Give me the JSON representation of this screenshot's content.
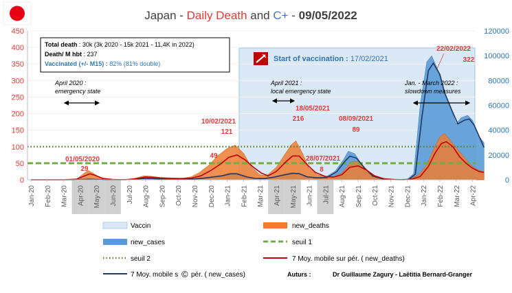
{
  "chart_data": {
    "type": "area",
    "title": {
      "country": "Japan",
      "sep1": " - ",
      "deaths": "Daily Death",
      "and": " and ",
      "cases": "C+",
      "sep2": " - ",
      "date": "09/05/2022"
    },
    "x_ticks": [
      "Jan-20",
      "Feb-20",
      "Mar-20",
      "Apr-20",
      "May-20",
      "Jun-20",
      "Jul-20",
      "Aug-20",
      "Sep-20",
      "Oct-20",
      "Nov-20",
      "Dec-20",
      "Jan-21",
      "Feb-21",
      "Mar-21",
      "Apr-21",
      "May-21",
      "Jun-21",
      "Jul-21",
      "Aug-21",
      "Sep-21",
      "Oct-21",
      "Nov-21",
      "Dec-21",
      "Jan-22",
      "Feb-22",
      "Mar-22",
      "Apr-22"
    ],
    "shaded_months": [
      "Apr-20",
      "May-20",
      "Jun-20",
      "Apr-21",
      "May-21",
      "Jul-21"
    ],
    "y_left": {
      "min": 0,
      "max": 450,
      "ticks": [
        0,
        50,
        100,
        150,
        200,
        250,
        300,
        350,
        400,
        450
      ],
      "color": "#e53935"
    },
    "y_right": {
      "min": 0,
      "max": 120000,
      "ticks": [
        0,
        20000,
        40000,
        60000,
        80000,
        100000,
        120000
      ],
      "color": "#2e75b6"
    },
    "thresholds": {
      "seuil_1": 50,
      "seuil_2": 100
    },
    "vaccination_start_month": 13.5,
    "series": {
      "new_deaths": {
        "color": "#ed7d31",
        "points": [
          [
            0,
            0
          ],
          [
            2,
            0
          ],
          [
            2.8,
            3
          ],
          [
            3.2,
            18
          ],
          [
            3.5,
            28
          ],
          [
            3.8,
            20
          ],
          [
            4.3,
            5
          ],
          [
            4.8,
            1
          ],
          [
            5.5,
            0
          ],
          [
            6.3,
            4
          ],
          [
            6.9,
            12
          ],
          [
            7.3,
            11
          ],
          [
            7.9,
            7
          ],
          [
            8.6,
            6
          ],
          [
            9.3,
            5
          ],
          [
            9.8,
            9
          ],
          [
            10.3,
            22
          ],
          [
            10.9,
            45
          ],
          [
            11.4,
            72
          ],
          [
            12.0,
            95
          ],
          [
            12.5,
            105
          ],
          [
            13.0,
            80
          ],
          [
            13.5,
            38
          ],
          [
            14.0,
            15
          ],
          [
            14.4,
            12
          ],
          [
            15.0,
            38
          ],
          [
            15.5,
            75
          ],
          [
            15.9,
            105
          ],
          [
            16.2,
            118
          ],
          [
            16.6,
            80
          ],
          [
            17.0,
            35
          ],
          [
            17.5,
            15
          ],
          [
            18.0,
            10
          ],
          [
            18.5,
            8
          ],
          [
            19.0,
            20
          ],
          [
            19.6,
            55
          ],
          [
            20.1,
            55
          ],
          [
            20.6,
            25
          ],
          [
            21.2,
            8
          ],
          [
            21.7,
            3
          ],
          [
            22.2,
            1
          ],
          [
            22.8,
            0
          ],
          [
            23.2,
            3
          ],
          [
            23.7,
            15
          ],
          [
            24.2,
            45
          ],
          [
            24.6,
            90
          ],
          [
            25.0,
            130
          ],
          [
            25.3,
            140
          ],
          [
            25.7,
            115
          ],
          [
            26.2,
            85
          ],
          [
            26.6,
            62
          ],
          [
            27.0,
            40
          ],
          [
            27.4,
            28
          ],
          [
            27.7,
            25
          ]
        ]
      },
      "new_cases": {
        "color": "#5b9bd5",
        "points": [
          [
            0,
            0
          ],
          [
            2.5,
            0
          ],
          [
            3.2,
            400
          ],
          [
            3.5,
            600
          ],
          [
            3.9,
            300
          ],
          [
            4.4,
            100
          ],
          [
            5.2,
            50
          ],
          [
            6.0,
            400
          ],
          [
            6.7,
            1300
          ],
          [
            7.1,
            1400
          ],
          [
            7.6,
            900
          ],
          [
            8.3,
            600
          ],
          [
            9.2,
            500
          ],
          [
            9.9,
            800
          ],
          [
            10.4,
            1500
          ],
          [
            11.0,
            2500
          ],
          [
            11.6,
            3500
          ],
          [
            12.1,
            5500
          ],
          [
            12.5,
            5600
          ],
          [
            13.1,
            2500
          ],
          [
            13.6,
            1200
          ],
          [
            14.2,
            1200
          ],
          [
            14.8,
            2500
          ],
          [
            15.4,
            4500
          ],
          [
            15.9,
            6000
          ],
          [
            16.3,
            5500
          ],
          [
            16.8,
            2500
          ],
          [
            17.4,
            1800
          ],
          [
            18.0,
            2000
          ],
          [
            18.6,
            7000
          ],
          [
            19.1,
            16000
          ],
          [
            19.4,
            23000
          ],
          [
            19.8,
            21000
          ],
          [
            20.3,
            11000
          ],
          [
            20.8,
            3500
          ],
          [
            21.4,
            800
          ],
          [
            22.0,
            200
          ],
          [
            22.5,
            150
          ],
          [
            23.0,
            400
          ],
          [
            23.4,
            5000
          ],
          [
            23.8,
            60000
          ],
          [
            24.2,
            95000
          ],
          [
            24.5,
            100000
          ],
          [
            24.9,
            88000
          ],
          [
            25.2,
            72000
          ],
          [
            25.6,
            60000
          ],
          [
            26.0,
            45000
          ],
          [
            26.3,
            50000
          ],
          [
            26.7,
            52000
          ],
          [
            27.0,
            48000
          ],
          [
            27.4,
            35000
          ],
          [
            27.7,
            30000
          ]
        ]
      },
      "ma7_new_deaths": {
        "name": "7 Moy. mobile sur pér. ( new_deaths)",
        "color": "#c00000",
        "points": [
          [
            0,
            0
          ],
          [
            2,
            0
          ],
          [
            2.8,
            2
          ],
          [
            3.3,
            12
          ],
          [
            3.6,
            18
          ],
          [
            3.9,
            14
          ],
          [
            4.4,
            4
          ],
          [
            5.0,
            1
          ],
          [
            5.8,
            0
          ],
          [
            6.4,
            3
          ],
          [
            7.0,
            8
          ],
          [
            7.5,
            7
          ],
          [
            8.3,
            4
          ],
          [
            9.0,
            3
          ],
          [
            9.8,
            5
          ],
          [
            10.4,
            12
          ],
          [
            11.0,
            28
          ],
          [
            11.6,
            48
          ],
          [
            12.1,
            68
          ],
          [
            12.6,
            75
          ],
          [
            13.1,
            60
          ],
          [
            13.6,
            38
          ],
          [
            14.1,
            20
          ],
          [
            14.5,
            12
          ],
          [
            15.0,
            25
          ],
          [
            15.6,
            55
          ],
          [
            16.0,
            72
          ],
          [
            16.4,
            72
          ],
          [
            16.9,
            45
          ],
          [
            17.4,
            22
          ],
          [
            18.0,
            10
          ],
          [
            18.5,
            8
          ],
          [
            19.0,
            15
          ],
          [
            19.5,
            38
          ],
          [
            20.0,
            42
          ],
          [
            20.5,
            30
          ],
          [
            21.0,
            12
          ],
          [
            21.6,
            3
          ],
          [
            22.2,
            1
          ],
          [
            22.8,
            0
          ],
          [
            23.3,
            2
          ],
          [
            23.8,
            10
          ],
          [
            24.3,
            40
          ],
          [
            24.7,
            80
          ],
          [
            25.1,
            110
          ],
          [
            25.4,
            115
          ],
          [
            25.8,
            100
          ],
          [
            26.2,
            70
          ],
          [
            26.6,
            50
          ],
          [
            27.0,
            35
          ],
          [
            27.4,
            25
          ],
          [
            27.7,
            22
          ]
        ]
      },
      "ma7_new_cases": {
        "name": "7 Moy. mobile s pér. ( new_cases)",
        "color": "#1f3864",
        "points": [
          [
            0,
            0
          ],
          [
            2.5,
            0
          ],
          [
            3.2,
            250
          ],
          [
            3.6,
            450
          ],
          [
            4.0,
            250
          ],
          [
            4.6,
            80
          ],
          [
            5.4,
            50
          ],
          [
            6.2,
            300
          ],
          [
            6.8,
            1000
          ],
          [
            7.2,
            1100
          ],
          [
            7.8,
            700
          ],
          [
            8.5,
            500
          ],
          [
            9.3,
            400
          ],
          [
            10.0,
            700
          ],
          [
            10.5,
            1200
          ],
          [
            11.1,
            2200
          ],
          [
            11.7,
            3200
          ],
          [
            12.2,
            4800
          ],
          [
            12.6,
            4800
          ],
          [
            13.2,
            2300
          ],
          [
            13.7,
            1100
          ],
          [
            14.3,
            1000
          ],
          [
            14.9,
            2200
          ],
          [
            15.5,
            4000
          ],
          [
            16.0,
            5200
          ],
          [
            16.4,
            4900
          ],
          [
            16.9,
            2300
          ],
          [
            17.5,
            1600
          ],
          [
            18.1,
            1800
          ],
          [
            18.7,
            6500
          ],
          [
            19.2,
            15000
          ],
          [
            19.5,
            19000
          ],
          [
            19.9,
            17500
          ],
          [
            20.4,
            9500
          ],
          [
            20.9,
            3000
          ],
          [
            21.5,
            700
          ],
          [
            22.0,
            180
          ],
          [
            22.6,
            130
          ],
          [
            23.1,
            350
          ],
          [
            23.5,
            4500
          ],
          [
            23.9,
            50000
          ],
          [
            24.3,
            88000
          ],
          [
            24.6,
            94000
          ],
          [
            25.0,
            85000
          ],
          [
            25.3,
            70000
          ],
          [
            25.7,
            57000
          ],
          [
            26.1,
            45000
          ],
          [
            26.5,
            48000
          ],
          [
            26.8,
            49000
          ],
          [
            27.1,
            44000
          ],
          [
            27.5,
            32000
          ],
          [
            27.7,
            26000
          ]
        ]
      }
    },
    "annotations": {
      "apr20": [
        "April 2020 :",
        "emergency state"
      ],
      "apr21": [
        "April 2021 :",
        "local emergency state"
      ],
      "jan22": [
        "Jan. - March 2022 :",
        "slowdown measures"
      ],
      "vaccination_label": "Start of vaccination :",
      "vaccination_date": " 17/02/2021",
      "peak_labels": [
        {
          "date": "01/05/2020",
          "value": "29"
        },
        {
          "date": "10/02/2021",
          "value": "121"
        },
        {
          "date": "",
          "value": "49"
        },
        {
          "date": "18/05/2021",
          "value": "216"
        },
        {
          "date": "28/07/2021",
          "value": "8"
        },
        {
          "date": "08/09/2021",
          "value": "89"
        },
        {
          "date": "22/02/2022",
          "value": "322"
        }
      ]
    },
    "info_box": {
      "line1_label": "Total death",
      "line1_value": " : 30k (3k 2020 - 15k 2021 - 11,4K in 2022)",
      "line2_label": "Death/ M hbt",
      "line2_value": " : 237",
      "line3_label": "Vaccinated (+/- M15) :",
      "line3_value": " 82% (81% double)"
    },
    "legend": {
      "vaccin": "Vaccin",
      "new_deaths": "new_deaths",
      "new_cases": "new_cases",
      "seuil_1": "seuil 1",
      "seuil_2": "seuil 2",
      "ma7_deaths": "7 Moy. mobile sur pér. ( new_deaths)",
      "ma7_cases": "7 Moy. mobile s",
      "ma7_cases_tail": "pér. ( new_cases)",
      "copyright": "©"
    },
    "authors": {
      "label": "Auturs :",
      "names": "Dr Guillaume Zagury - Laëtitia Bernard-Granger"
    }
  }
}
